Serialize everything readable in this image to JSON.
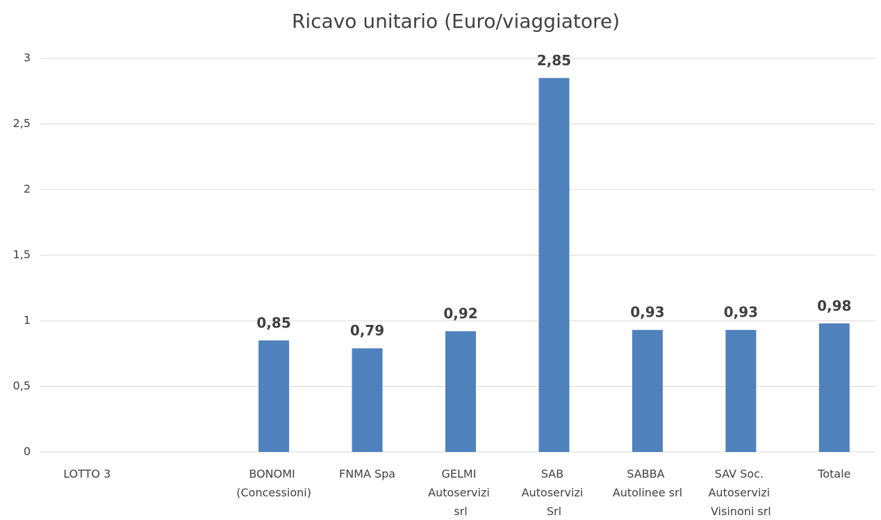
{
  "chart_data": {
    "type": "bar",
    "title": "Ricavo unitario (Euro/viaggiatore)",
    "categories": [
      "LOTTO 3",
      null,
      "BONOMI (Concessioni)",
      "FNMA Spa",
      "GELMI Autoservizi srl",
      "SAB Autoservizi Srl",
      "SABBA Autolinee srl",
      "SAV Soc. Autoservizi Visinoni srl",
      "Totale"
    ],
    "values": [
      null,
      null,
      0.85,
      0.79,
      0.92,
      2.85,
      0.93,
      0.93,
      0.98
    ],
    "value_labels": [
      null,
      null,
      "0,85",
      "0,79",
      "0,92",
      "2,85",
      "0,93",
      "0,93",
      "0,98"
    ],
    "color": "#4f81bd",
    "ylim": [
      0,
      3
    ],
    "yticks": [
      0,
      {
        "value": 0.5,
        "label": "0,5"
      },
      1,
      {
        "value": 1.5,
        "label": "1,5"
      },
      2,
      {
        "value": 2.5,
        "label": "2,5"
      },
      3
    ],
    "grid": true
  }
}
